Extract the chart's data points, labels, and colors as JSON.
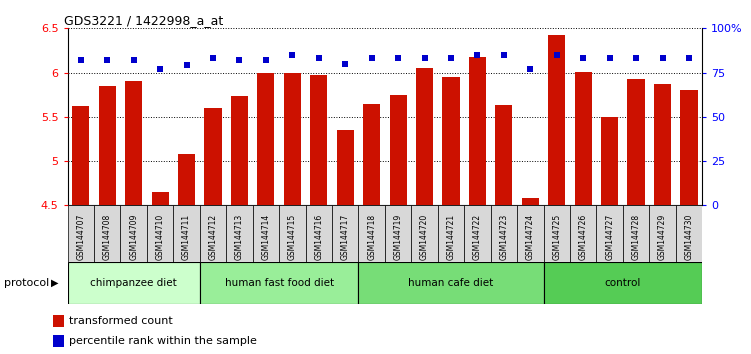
{
  "title": "GDS3221 / 1422998_a_at",
  "samples": [
    "GSM144707",
    "GSM144708",
    "GSM144709",
    "GSM144710",
    "GSM144711",
    "GSM144712",
    "GSM144713",
    "GSM144714",
    "GSM144715",
    "GSM144716",
    "GSM144717",
    "GSM144718",
    "GSM144719",
    "GSM144720",
    "GSM144721",
    "GSM144722",
    "GSM144723",
    "GSM144724",
    "GSM144725",
    "GSM144726",
    "GSM144727",
    "GSM144728",
    "GSM144729",
    "GSM144730"
  ],
  "bar_values": [
    5.62,
    5.85,
    5.9,
    4.65,
    5.08,
    5.6,
    5.73,
    6.0,
    6.0,
    5.97,
    5.35,
    5.65,
    5.75,
    6.05,
    5.95,
    6.18,
    5.63,
    4.58,
    6.42,
    6.01,
    5.5,
    5.93,
    5.87,
    5.8
  ],
  "percentile_values": [
    82,
    82,
    82,
    77,
    79,
    83,
    82,
    82,
    85,
    83,
    80,
    83,
    83,
    83,
    83,
    85,
    85,
    77,
    85,
    83,
    83,
    83,
    83,
    83
  ],
  "groups": [
    {
      "label": "chimpanzee diet",
      "start": 0,
      "end": 5,
      "color": "#ccffcc"
    },
    {
      "label": "human fast food diet",
      "start": 5,
      "end": 11,
      "color": "#99ee99"
    },
    {
      "label": "human cafe diet",
      "start": 11,
      "end": 18,
      "color": "#77dd77"
    },
    {
      "label": "control",
      "start": 18,
      "end": 24,
      "color": "#55cc55"
    }
  ],
  "ylim_left": [
    4.5,
    6.5
  ],
  "ylim_right": [
    0,
    100
  ],
  "bar_color": "#cc1100",
  "percentile_color": "#0000cc",
  "yticks_left": [
    4.5,
    5.0,
    5.5,
    6.0,
    6.5
  ],
  "ytick_labels_left": [
    "4.5",
    "5",
    "5.5",
    "6",
    "6.5"
  ],
  "yticks_right": [
    0,
    25,
    50,
    75,
    100
  ],
  "ytick_labels_right": [
    "0",
    "25",
    "50",
    "75",
    "100%"
  ],
  "protocol_label": "protocol",
  "legend_items": [
    {
      "label": "transformed count",
      "color": "#cc1100"
    },
    {
      "label": "percentile rank within the sample",
      "color": "#0000cc"
    }
  ]
}
